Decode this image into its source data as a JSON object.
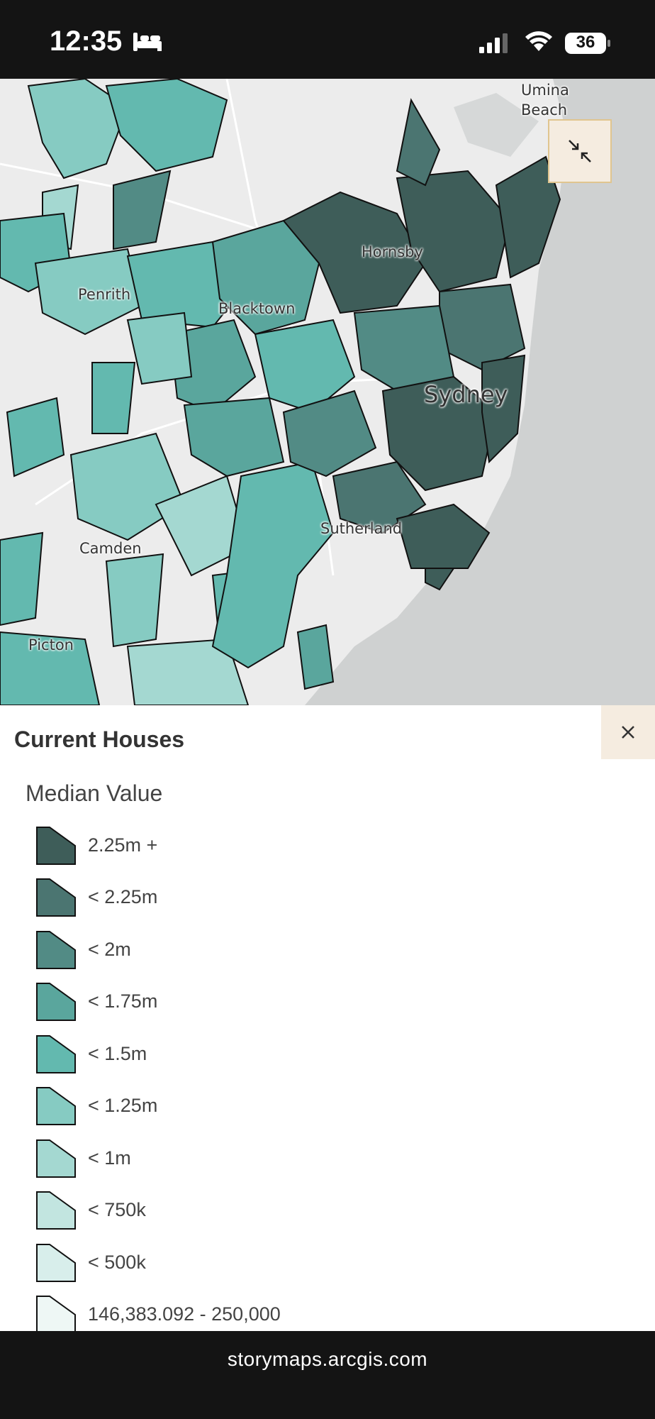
{
  "status_bar": {
    "time": "12:35",
    "battery": "36",
    "icons": [
      "bed-icon",
      "signal-icon",
      "wifi-icon",
      "battery-icon"
    ]
  },
  "map": {
    "labels": {
      "umina": "Umina",
      "beach": "Beach",
      "hornsby": "Hornsby",
      "penrith": "Penrith",
      "blacktown": "Blacktown",
      "sydney": "Sydney",
      "sutherland": "Sutherland",
      "camden": "Camden",
      "picton": "Picton"
    },
    "collapse_icon": "collapse-arrows-icon",
    "colors": {
      "land": "#ececec",
      "sea": "#cfd1d1"
    }
  },
  "legend": {
    "title": "Current Houses",
    "subtitle": "Median Value",
    "close_icon": "close-icon",
    "items": [
      {
        "label": "2.25m +",
        "color": "#3e5d59"
      },
      {
        "label": "< 2.25m",
        "color": "#4b7571"
      },
      {
        "label": "< 2m",
        "color": "#528b85"
      },
      {
        "label": "< 1.75m",
        "color": "#5aa69d"
      },
      {
        "label": "< 1.5m",
        "color": "#63b9af"
      },
      {
        "label": "< 1.25m",
        "color": "#86cbc2"
      },
      {
        "label": "< 1m",
        "color": "#a4d8d1"
      },
      {
        "label": "< 750k",
        "color": "#c2e5e0"
      },
      {
        "label": "< 500k",
        "color": "#d8eeeb"
      },
      {
        "label": "146,383.092 - 250,000",
        "color": "#eef7f5"
      }
    ]
  },
  "browser": {
    "url": "storymaps.arcgis.com"
  }
}
